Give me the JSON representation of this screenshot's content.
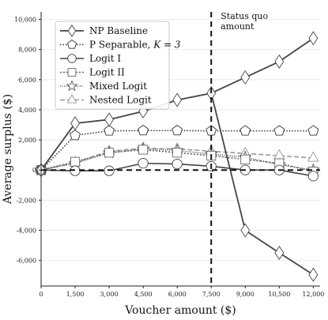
{
  "chart_data": {
    "type": "line",
    "xlabel": "Voucher amount ($)",
    "ylabel": "Average surplus ($)",
    "xlim": [
      0,
      12300
    ],
    "ylim": [
      -7700,
      10500
    ],
    "x_ticks": [
      0,
      1500,
      3000,
      4500,
      6000,
      7500,
      9000,
      10500,
      12000
    ],
    "x_tick_labels": [
      "0",
      "1,500",
      "3,000",
      "4,500",
      "6,000",
      "7,500",
      "9,000",
      "10,500",
      "12,000"
    ],
    "y_ticks": [
      -6000,
      -4000,
      -2000,
      0,
      2000,
      4000,
      6000,
      8000,
      10000
    ],
    "y_tick_labels": [
      "-6,000",
      "-4,000",
      "-2,000",
      "0",
      "2,000",
      "4,000",
      "6,000",
      "8,000",
      "10,000"
    ],
    "grid": "horizontal",
    "legend_position": "top-left",
    "x": [
      0,
      1500,
      3000,
      4500,
      6000,
      7500,
      9000,
      10500,
      12000
    ],
    "series": [
      {
        "name": "NP Baseline",
        "label_suffix": "",
        "marker": "diamond",
        "dash": "",
        "color": "#444444",
        "width": 1.8,
        "values": [
          0,
          3100,
          3350,
          3900,
          4650,
          5100,
          6150,
          7200,
          8750
        ],
        "values_after": [
          -4000,
          -5500,
          -6950
        ]
      },
      {
        "name": "P Separable, ",
        "label_suffix": "K = 3",
        "marker": "pentagon",
        "dash": "1.5,2",
        "color": "#333333",
        "width": 1.6,
        "values": [
          0,
          2300,
          2600,
          2620,
          2620,
          2600,
          2600,
          2600,
          2600
        ]
      },
      {
        "name": "Logit I",
        "label_suffix": "",
        "marker": "circle",
        "dash": "",
        "color": "#444444",
        "width": 1.6,
        "values": [
          0,
          -50,
          -50,
          450,
          400,
          250,
          0,
          0,
          -400
        ]
      },
      {
        "name": "Logit II",
        "label_suffix": "",
        "marker": "square",
        "dash": "2,2",
        "color": "#666666",
        "width": 1.6,
        "values": [
          0,
          550,
          1150,
          1350,
          1150,
          950,
          700,
          450,
          -100
        ]
      },
      {
        "name": "Mixed Logit",
        "label_suffix": "",
        "marker": "star",
        "dash": "1,1.5",
        "color": "#555555",
        "width": 1.6,
        "values": [
          0,
          450,
          1150,
          1400,
          1300,
          1050,
          850,
          350,
          0
        ]
      },
      {
        "name": "Nested Logit",
        "label_suffix": "",
        "marker": "triangle",
        "dash": "6,3",
        "color": "#999999",
        "width": 1.6,
        "values": [
          0,
          500,
          1250,
          1450,
          1400,
          1250,
          1100,
          950,
          800
        ]
      }
    ],
    "vline": {
      "x": 7500,
      "label_line1": "Status quo",
      "label_line2": "amount"
    },
    "hline": {
      "y": 0
    }
  }
}
